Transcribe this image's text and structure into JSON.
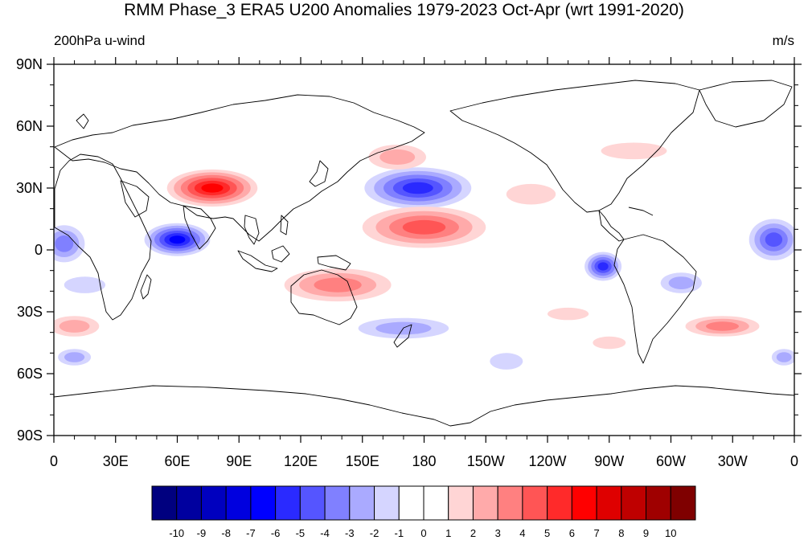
{
  "title": "RMM Phase_3 ERA5 U200 Anomalies 1979-2023 Oct-Apr (wrt 1991-2020)",
  "left_label": "200hPa u-wind",
  "right_label": "m/s",
  "chart_data": {
    "type": "heatmap",
    "projection": "cylindrical equidistant",
    "lon_range": [
      0,
      360
    ],
    "lat_range": [
      -90,
      90
    ],
    "x_ticks": [
      {
        "lon": 0,
        "label": "0"
      },
      {
        "lon": 30,
        "label": "30E"
      },
      {
        "lon": 60,
        "label": "60E"
      },
      {
        "lon": 90,
        "label": "90E"
      },
      {
        "lon": 120,
        "label": "120E"
      },
      {
        "lon": 150,
        "label": "150E"
      },
      {
        "lon": 180,
        "label": "180"
      },
      {
        "lon": 210,
        "label": "150W"
      },
      {
        "lon": 240,
        "label": "120W"
      },
      {
        "lon": 270,
        "label": "90W"
      },
      {
        "lon": 300,
        "label": "60W"
      },
      {
        "lon": 330,
        "label": "30W"
      },
      {
        "lon": 360,
        "label": "0"
      }
    ],
    "y_ticks": [
      {
        "lat": 90,
        "label": "90N"
      },
      {
        "lat": 60,
        "label": "60N"
      },
      {
        "lat": 30,
        "label": "30N"
      },
      {
        "lat": 0,
        "label": "0"
      },
      {
        "lat": -30,
        "label": "30S"
      },
      {
        "lat": -60,
        "label": "60S"
      },
      {
        "lat": -90,
        "label": "90S"
      }
    ],
    "colorbar": {
      "labels": [
        "-10",
        "-9",
        "-8",
        "-7",
        "-6",
        "-5",
        "-4",
        "-3",
        "-2",
        "-1",
        "0",
        "1",
        "2",
        "3",
        "4",
        "5",
        "6",
        "7",
        "8",
        "9",
        "10"
      ],
      "colors": [
        "#00007f",
        "#00009f",
        "#0000bf",
        "#0000df",
        "#0000ff",
        "#2a2aff",
        "#5555ff",
        "#8080ff",
        "#aaaaff",
        "#d5d5ff",
        "#ffffff",
        "#ffffff",
        "#ffd5d5",
        "#ffaaaa",
        "#ff8080",
        "#ff5555",
        "#ff2a2a",
        "#ff0000",
        "#df0000",
        "#bf0000",
        "#9f0000",
        "#7f0000"
      ]
    },
    "anomalies": [
      {
        "lon": 77,
        "lat": 30,
        "value": 6.5
      },
      {
        "lon": 177,
        "lat": 30,
        "value": -5.5
      },
      {
        "lon": 60,
        "lat": 5,
        "value": -6.5
      },
      {
        "lon": 5,
        "lat": 3,
        "value": -3.5
      },
      {
        "lon": 180,
        "lat": 11,
        "value": 4.5
      },
      {
        "lon": 138,
        "lat": -17,
        "value": 3.5
      },
      {
        "lon": 267,
        "lat": -8,
        "value": -5.5
      },
      {
        "lon": 350,
        "lat": 5,
        "value": -4.2
      },
      {
        "lon": 167,
        "lat": 45,
        "value": 2.5
      },
      {
        "lon": 325,
        "lat": -37,
        "value": 3.5
      },
      {
        "lon": 10,
        "lat": -37,
        "value": 2.5
      },
      {
        "lon": 282,
        "lat": 48,
        "value": 1.8
      },
      {
        "lon": 232,
        "lat": 27,
        "value": 1.8
      },
      {
        "lon": 10,
        "lat": -52,
        "value": -2.0
      },
      {
        "lon": 355,
        "lat": -52,
        "value": -2.0
      },
      {
        "lon": 170,
        "lat": -38,
        "value": -2.0
      },
      {
        "lon": 270,
        "lat": -45,
        "value": 1.8
      },
      {
        "lon": 305,
        "lat": -16,
        "value": -2.0
      },
      {
        "lon": 220,
        "lat": -54,
        "value": -1.8
      },
      {
        "lon": 250,
        "lat": -31,
        "value": 1.6
      },
      {
        "lon": 15,
        "lat": -17,
        "value": -1.5
      }
    ]
  }
}
